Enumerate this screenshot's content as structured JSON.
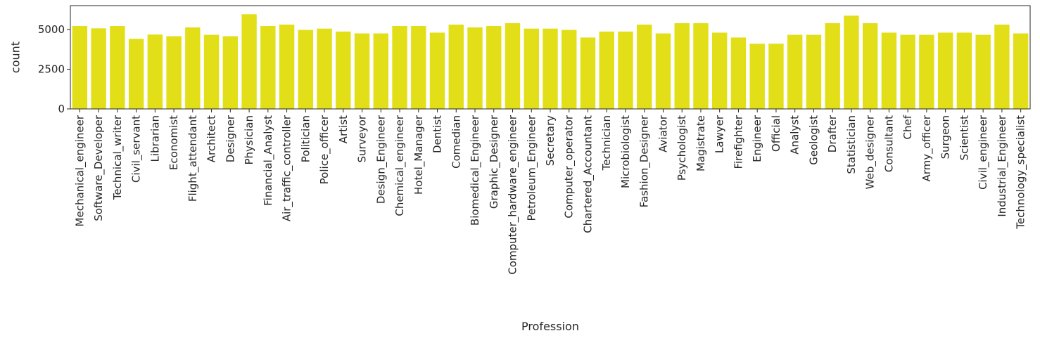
{
  "chart_data": {
    "type": "bar",
    "xlabel": "Profession",
    "ylabel": "count",
    "ylim": [
      0,
      6500
    ],
    "yticks": [
      0,
      2500,
      5000
    ],
    "grid": false,
    "bar_color": "#e2df18",
    "categories": [
      "Mechanical_engineer",
      "Software_Developer",
      "Technical_writer",
      "Civil_servant",
      "Librarian",
      "Economist",
      "Flight_attendant",
      "Architect",
      "Designer",
      "Physician",
      "Financial_Analyst",
      "Air_traffic_controller",
      "Politician",
      "Police_officer",
      "Artist",
      "Surveyor",
      "Design_Engineer",
      "Chemical_engineer",
      "Hotel_Manager",
      "Dentist",
      "Comedian",
      "Biomedical_Engineer",
      "Graphic_Designer",
      "Computer_hardware_engineer",
      "Petroleum_Engineer",
      "Secretary",
      "Computer_operator",
      "Chartered_Accountant",
      "Technician",
      "Microbiologist",
      "Fashion_Designer",
      "Aviator",
      "Psychologist",
      "Magistrate",
      "Lawyer",
      "Firefighter",
      "Engineer",
      "Official",
      "Analyst",
      "Geologist",
      "Drafter",
      "Statistician",
      "Web_designer",
      "Consultant",
      "Chef",
      "Army_officer",
      "Surgeon",
      "Scientist",
      "Civil_engineer",
      "Industrial_Engineer",
      "Technology_specialist"
    ],
    "values": [
      5217,
      5070,
      5217,
      4413,
      4680,
      4575,
      5129,
      4663,
      4575,
      5957,
      5217,
      5305,
      4973,
      5054,
      4868,
      4751,
      4751,
      5217,
      5217,
      4800,
      5305,
      5129,
      5217,
      5393,
      5054,
      5054,
      4973,
      4493,
      4868,
      4868,
      5305,
      4751,
      5393,
      5393,
      4800,
      4493,
      4105,
      4105,
      4663,
      4663,
      5393,
      5870,
      5393,
      4800,
      4663,
      4663,
      4800,
      4800,
      4663,
      5305,
      4751
    ]
  }
}
